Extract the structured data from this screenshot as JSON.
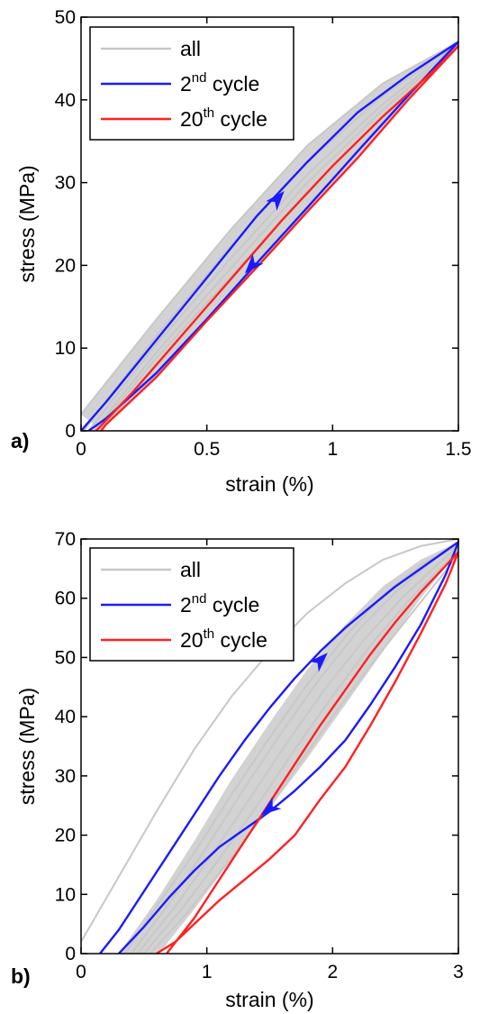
{
  "chart_data": [
    {
      "type": "line",
      "panel_label": "a)",
      "xlabel": "strain (%)",
      "ylabel": "stress (MPa)",
      "xlim": [
        0,
        1.5
      ],
      "ylim": [
        0,
        50
      ],
      "xticks": [
        0,
        0.5,
        1,
        1.5
      ],
      "xtick_labels": [
        "0",
        "0.5",
        "1",
        "1.5"
      ],
      "yticks": [
        0,
        10,
        20,
        30,
        40,
        50
      ],
      "ytick_labels": [
        "0",
        "10",
        "20",
        "30",
        "40",
        "50"
      ],
      "grid": false,
      "legend_position": "top-left",
      "legend": [
        {
          "base": "all",
          "sup": "",
          "suffix": "",
          "color": "#c8c8c8"
        },
        {
          "base": "2",
          "sup": "nd",
          "suffix": " cycle",
          "color": "#1a1aff"
        },
        {
          "base": "20",
          "sup": "th",
          "suffix": " cycle",
          "color": "#ff2020"
        }
      ],
      "series": [
        {
          "name": "all",
          "kind": "loop-band",
          "color": "#c8c8c8",
          "fill": "#d2d2d2",
          "outer_load": [
            [
              0,
              2
            ],
            [
              0.3,
              13.5
            ],
            [
              0.6,
              24.5
            ],
            [
              0.9,
              34.5
            ],
            [
              1.2,
              42
            ],
            [
              1.5,
              47
            ]
          ],
          "inner_unload": [
            [
              1.5,
              46.5
            ],
            [
              1.2,
              36.5
            ],
            [
              0.9,
              26.5
            ],
            [
              0.6,
              16.5
            ],
            [
              0.3,
              6.5
            ],
            [
              0.08,
              0
            ]
          ],
          "curves": [
            [
              [
                0,
                2
              ],
              [
                0.3,
                13.5
              ],
              [
                0.6,
                24.5
              ],
              [
                0.9,
                34.5
              ],
              [
                1.2,
                42
              ],
              [
                1.5,
                47
              ]
            ],
            [
              [
                0.01,
                0
              ],
              [
                0.3,
                11.5
              ],
              [
                0.6,
                22.5
              ],
              [
                0.9,
                32.5
              ],
              [
                1.2,
                40.5
              ],
              [
                1.5,
                46.8
              ]
            ],
            [
              [
                0.03,
                0
              ],
              [
                0.3,
                10.5
              ],
              [
                0.6,
                21
              ],
              [
                0.9,
                31
              ],
              [
                1.2,
                39.5
              ],
              [
                1.5,
                46.7
              ]
            ],
            [
              [
                0.05,
                0
              ],
              [
                0.3,
                9.5
              ],
              [
                0.6,
                19.8
              ],
              [
                0.9,
                30
              ],
              [
                1.2,
                38.8
              ],
              [
                1.5,
                46.6
              ]
            ],
            [
              [
                0.06,
                0
              ],
              [
                0.3,
                8.8
              ],
              [
                0.6,
                18.8
              ],
              [
                0.9,
                29
              ],
              [
                1.2,
                38
              ],
              [
                1.5,
                46.5
              ]
            ]
          ]
        },
        {
          "name": "2nd cycle",
          "color": "#1a1aff",
          "x": [
            0,
            0.1,
            0.3,
            0.5,
            0.7,
            0.9,
            1.1,
            1.3,
            1.5,
            1.3,
            1.1,
            0.9,
            0.7,
            0.5,
            0.3,
            0.1,
            0.03
          ],
          "y": [
            0,
            3.5,
            11,
            18.5,
            26,
            32.5,
            38.5,
            43,
            47,
            40.5,
            33.8,
            27,
            20.3,
            13.5,
            7,
            1.5,
            0
          ],
          "arrows": [
            {
              "x": 0.78,
              "y": 28,
              "direction": "up"
            },
            {
              "x": 0.68,
              "y": 20,
              "direction": "down"
            }
          ]
        },
        {
          "name": "20th cycle",
          "color": "#ff2020",
          "x": [
            0.06,
            0.2,
            0.4,
            0.6,
            0.8,
            1.0,
            1.2,
            1.4,
            1.5,
            1.3,
            1.1,
            0.9,
            0.7,
            0.5,
            0.3,
            0.1,
            0.08
          ],
          "y": [
            0,
            4.5,
            11.5,
            18.5,
            25.5,
            32,
            38,
            43.5,
            46.5,
            40,
            33,
            26.5,
            19.8,
            13.3,
            6.5,
            0.8,
            0
          ]
        }
      ]
    },
    {
      "type": "line",
      "panel_label": "b)",
      "xlabel": "strain (%)",
      "ylabel": "stress (MPa)",
      "xlim": [
        0,
        3
      ],
      "ylim": [
        0,
        70
      ],
      "xticks": [
        0,
        1,
        2,
        3
      ],
      "xtick_labels": [
        "0",
        "1",
        "2",
        "3"
      ],
      "yticks": [
        0,
        10,
        20,
        30,
        40,
        50,
        60,
        70
      ],
      "ytick_labels": [
        "0",
        "10",
        "20",
        "30",
        "40",
        "50",
        "60",
        "70"
      ],
      "grid": false,
      "legend_position": "top-left",
      "legend": [
        {
          "base": "all",
          "sup": "",
          "suffix": "",
          "color": "#c8c8c8"
        },
        {
          "base": "2",
          "sup": "nd",
          "suffix": " cycle",
          "color": "#1a1aff"
        },
        {
          "base": "20",
          "sup": "th",
          "suffix": " cycle",
          "color": "#ff2020"
        }
      ],
      "series": [
        {
          "name": "all",
          "kind": "loop-band",
          "color": "#c8c8c8",
          "fill": "#d2d2d2",
          "outer_load": [
            [
              0.3,
              0
            ],
            [
              0.6,
              9
            ],
            [
              0.9,
              19
            ],
            [
              1.2,
              29.5
            ],
            [
              1.5,
              39
            ],
            [
              1.8,
              48
            ],
            [
              2.1,
              55.5
            ],
            [
              2.4,
              62
            ],
            [
              2.7,
              66.5
            ],
            [
              3.0,
              69.5
            ]
          ],
          "inner_unload": [
            [
              3.0,
              68
            ],
            [
              2.7,
              60
            ],
            [
              2.4,
              51
            ],
            [
              2.1,
              42
            ],
            [
              1.8,
              33
            ],
            [
              1.5,
              24.5
            ],
            [
              1.2,
              16
            ],
            [
              0.9,
              7.5
            ],
            [
              0.62,
              0
            ]
          ],
          "curves": [
            [
              [
                0,
                2
              ],
              [
                0.3,
                13
              ],
              [
                0.6,
                24
              ],
              [
                0.9,
                34.5
              ],
              [
                1.2,
                43.5
              ],
              [
                1.5,
                51
              ],
              [
                1.8,
                57.5
              ],
              [
                2.1,
                62.5
              ],
              [
                2.4,
                66.5
              ],
              [
                2.7,
                68.8
              ],
              [
                3.0,
                70
              ]
            ],
            [
              [
                0.35,
                0
              ],
              [
                0.6,
                8
              ],
              [
                0.9,
                17
              ],
              [
                1.2,
                27
              ],
              [
                1.5,
                36.5
              ],
              [
                1.8,
                45.5
              ],
              [
                2.1,
                53.5
              ],
              [
                2.4,
                60.5
              ],
              [
                2.7,
                65.5
              ],
              [
                3.0,
                69.5
              ]
            ],
            [
              [
                0.4,
                0
              ],
              [
                0.7,
                8.5
              ],
              [
                1.0,
                18
              ],
              [
                1.3,
                28
              ],
              [
                1.6,
                37.5
              ],
              [
                1.9,
                46.5
              ],
              [
                2.2,
                54.5
              ],
              [
                2.5,
                61
              ],
              [
                2.8,
                66.5
              ],
              [
                3.0,
                69
              ]
            ],
            [
              [
                0.45,
                0
              ],
              [
                0.75,
                8
              ],
              [
                1.05,
                17
              ],
              [
                1.35,
                26.5
              ],
              [
                1.65,
                36
              ],
              [
                1.95,
                45
              ],
              [
                2.25,
                53
              ],
              [
                2.55,
                60
              ],
              [
                2.85,
                66
              ],
              [
                3.0,
                68.8
              ]
            ],
            [
              [
                0.5,
                0
              ],
              [
                0.8,
                7.5
              ],
              [
                1.1,
                16
              ],
              [
                1.4,
                25
              ],
              [
                1.7,
                34.5
              ],
              [
                2.0,
                43.5
              ],
              [
                2.3,
                52
              ],
              [
                2.6,
                59.5
              ],
              [
                2.9,
                66
              ],
              [
                3.0,
                68.5
              ]
            ],
            [
              [
                0.55,
                0
              ],
              [
                0.85,
                7
              ],
              [
                1.15,
                15
              ],
              [
                1.45,
                23.5
              ],
              [
                1.75,
                32.5
              ],
              [
                2.05,
                41.5
              ],
              [
                2.35,
                50
              ],
              [
                2.65,
                58
              ],
              [
                2.95,
                66
              ],
              [
                3.0,
                68.2
              ]
            ]
          ]
        },
        {
          "name": "2nd cycle",
          "color": "#1a1aff",
          "x": [
            0.15,
            0.3,
            0.5,
            0.7,
            0.9,
            1.1,
            1.3,
            1.5,
            1.7,
            1.9,
            2.1,
            2.3,
            2.5,
            2.7,
            2.9,
            3.0,
            2.9,
            2.7,
            2.5,
            2.3,
            2.1,
            1.9,
            1.7,
            1.5,
            1.3,
            1.1,
            0.9,
            0.7,
            0.5,
            0.3
          ],
          "y": [
            0,
            4,
            10.5,
            17,
            23.5,
            30,
            36,
            41.5,
            46.5,
            51,
            55,
            58.5,
            62,
            65,
            68,
            69.5,
            64,
            55.5,
            48.5,
            42,
            36,
            31.5,
            27.5,
            24,
            21,
            18,
            14,
            9.5,
            4.5,
            0
          ],
          "arrows": [
            {
              "x": 1.9,
              "y": 49.5,
              "direction": "up"
            },
            {
              "x": 1.5,
              "y": 24.5,
              "direction": "down"
            }
          ]
        },
        {
          "name": "20th cycle",
          "color": "#ff2020",
          "x": [
            0.68,
            0.9,
            1.1,
            1.3,
            1.5,
            1.7,
            1.9,
            2.1,
            2.3,
            2.5,
            2.7,
            2.9,
            3.0,
            2.9,
            2.7,
            2.5,
            2.3,
            2.1,
            1.9,
            1.7,
            1.5,
            1.3,
            1.1,
            0.9,
            0.75,
            0.6
          ],
          "y": [
            0,
            6,
            12.5,
            19,
            25.5,
            32,
            38.5,
            44.5,
            50.5,
            56,
            61,
            65.5,
            67.8,
            62.5,
            54,
            46,
            38.5,
            31.5,
            26,
            20,
            16,
            12.5,
            9,
            5,
            2,
            0
          ]
        }
      ]
    }
  ]
}
